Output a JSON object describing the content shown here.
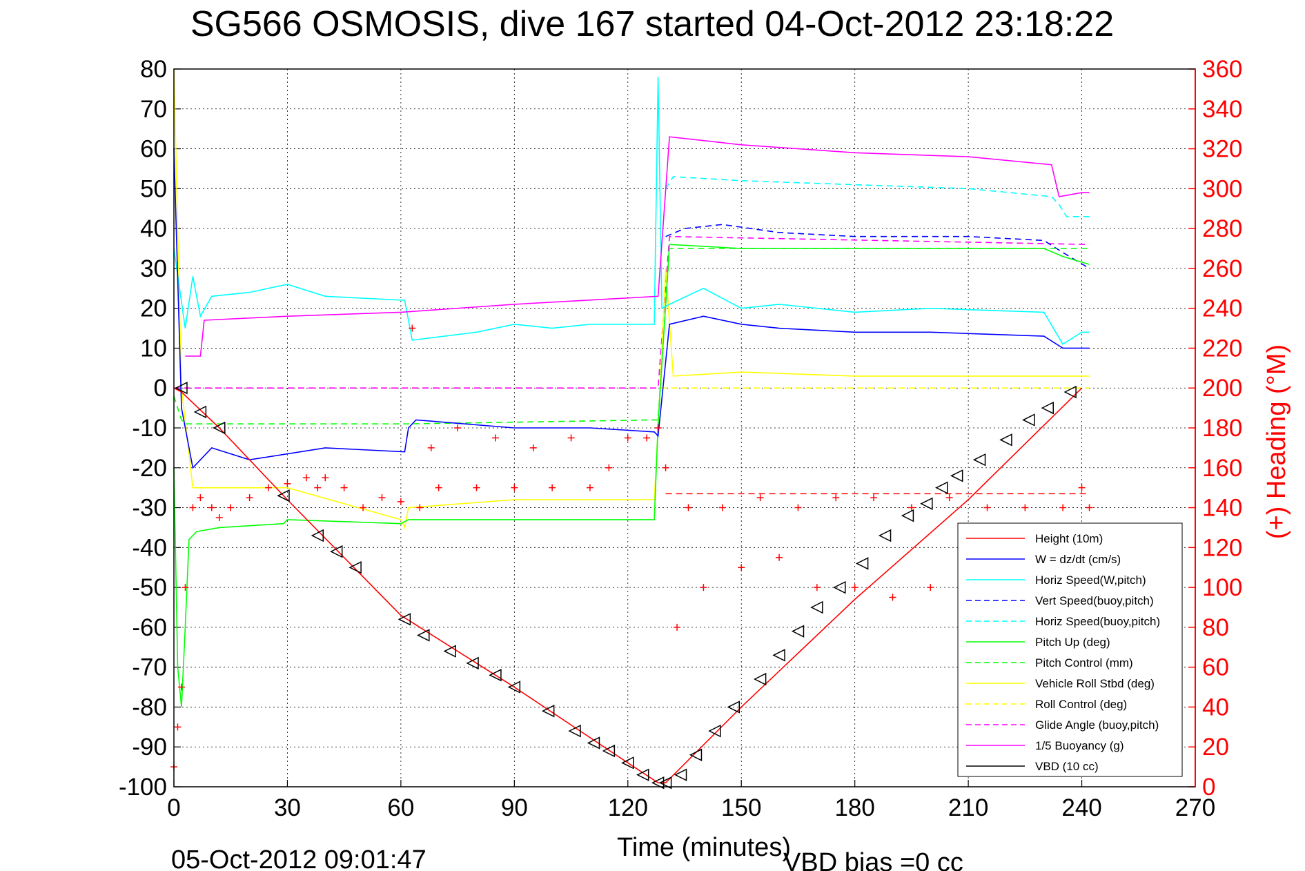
{
  "chart_data": {
    "type": "line",
    "title": "SG566 OSMOSIS, dive 167 started 04-Oct-2012 23:18:22",
    "xlabel": "Time (minutes)",
    "ylabel_right": "(+) Heading (°M)",
    "footer_date": "05-Oct-2012 09:01:47",
    "footer_bias": "VBD bias =0 cc",
    "xlim": [
      0,
      270
    ],
    "ylim": [
      -100,
      80
    ],
    "ylim_right": [
      0,
      360
    ],
    "x_ticks": [
      "0",
      "30",
      "60",
      "90",
      "120",
      "150",
      "180",
      "210",
      "240",
      "270"
    ],
    "y_ticks": [
      "80",
      "70",
      "60",
      "50",
      "40",
      "30",
      "20",
      "10",
      "0",
      "-10",
      "-20",
      "-30",
      "-40",
      "-50",
      "-60",
      "-70",
      "-80",
      "-90",
      "-100"
    ],
    "y_right_ticks": [
      "360",
      "340",
      "320",
      "300",
      "280",
      "260",
      "240",
      "220",
      "200",
      "180",
      "160",
      "140",
      "120",
      "100",
      "80",
      "60",
      "40",
      "20",
      "0"
    ],
    "grid": true,
    "legend_position": "lower-right",
    "series": [
      {
        "name": "Height (10m)",
        "color": "#ff0000",
        "style": "solid",
        "x": [
          0,
          2,
          12,
          30,
          60,
          90,
          120,
          128,
          130,
          150,
          180,
          210,
          240
        ],
        "values": [
          0,
          -1,
          -10,
          -28,
          -57,
          -75,
          -94,
          -99,
          -99,
          -80,
          -53,
          -28,
          0
        ]
      },
      {
        "name": "W = dz/dt (cm/s)",
        "color": "#0000ff",
        "style": "solid",
        "x": [
          0,
          2,
          5,
          10,
          20,
          40,
          61,
          62,
          64,
          90,
          110,
          127,
          128,
          131,
          140,
          150,
          160,
          180,
          200,
          230,
          235,
          240,
          242
        ],
        "values": [
          60,
          -5,
          -20,
          -15,
          -18,
          -15,
          -16,
          -10,
          -8,
          -10,
          -10,
          -11,
          -12,
          16,
          18,
          16,
          15,
          14,
          14,
          13,
          10,
          10,
          10
        ]
      },
      {
        "name": "Horiz Speed(W,pitch)",
        "color": "#00ffff",
        "style": "solid",
        "x": [
          0,
          3,
          5,
          7,
          10,
          20,
          30,
          40,
          61,
          63,
          80,
          90,
          100,
          110,
          127,
          128,
          129,
          131,
          140,
          150,
          160,
          180,
          200,
          230,
          235,
          240,
          242
        ],
        "values": [
          35,
          15,
          28,
          18,
          23,
          24,
          26,
          23,
          22,
          12,
          14,
          16,
          15,
          16,
          16,
          78,
          20,
          21,
          25,
          20,
          21,
          19,
          20,
          19,
          11,
          14,
          14
        ]
      },
      {
        "name": "Vert Speed(buoy,pitch)",
        "color": "#0000ff",
        "style": "dashed",
        "x": [
          130,
          135,
          145,
          160,
          180,
          210,
          230,
          235,
          242
        ],
        "values": [
          38,
          40,
          41,
          39,
          38,
          38,
          37,
          34,
          30
        ]
      },
      {
        "name": "Horiz Speed(buoy,pitch)",
        "color": "#00ffff",
        "style": "dashed",
        "x": [
          130,
          132,
          150,
          180,
          210,
          232,
          234,
          236,
          242
        ],
        "values": [
          50,
          53,
          52,
          51,
          50,
          48,
          46,
          43,
          43
        ]
      },
      {
        "name": "Pitch Up (deg)",
        "color": "#00ff00",
        "style": "solid",
        "x": [
          0,
          1,
          2,
          3,
          4,
          6,
          12,
          29,
          30,
          60,
          62,
          90,
          127,
          128,
          131,
          150,
          180,
          210,
          230,
          235,
          242
        ],
        "values": [
          -20,
          -70,
          -80,
          -60,
          -38,
          -36,
          -35,
          -34,
          -33,
          -34,
          -33,
          -33,
          -33,
          -9,
          36,
          35,
          35,
          35,
          35,
          33,
          31
        ]
      },
      {
        "name": "Pitch Control (mm)",
        "color": "#00ff00",
        "style": "dashed",
        "x": [
          0,
          2,
          3,
          60,
          62,
          127,
          128,
          131,
          242
        ],
        "values": [
          -2,
          -8,
          -9,
          -9,
          -9,
          -8,
          -8,
          35,
          35
        ]
      },
      {
        "name": "Vehicle Roll Stbd (deg)",
        "color": "#ffff00",
        "style": "solid",
        "x": [
          0,
          2,
          5,
          30,
          60,
          61,
          62,
          90,
          127,
          128,
          130,
          132,
          150,
          180,
          210,
          240,
          242
        ],
        "values": [
          80,
          0,
          -25,
          -25,
          -33,
          -35,
          -30,
          -28,
          -28,
          -10,
          30,
          3,
          4,
          3,
          3,
          3,
          3
        ]
      },
      {
        "name": "Roll Control (deg)",
        "color": "#ffff00",
        "style": "dashed",
        "x": [
          0,
          2,
          60,
          62,
          128,
          131,
          242
        ],
        "values": [
          0,
          0,
          0,
          0,
          0,
          0,
          0
        ]
      },
      {
        "name": "Glide Angle (buoy,pitch)",
        "color": "#ff00ff",
        "style": "dashed",
        "x": [
          0,
          128,
          131,
          242
        ],
        "values": [
          0,
          0,
          38,
          36
        ]
      },
      {
        "name": "1/5 Buoyancy (g)",
        "color": "#ff00ff",
        "style": "solid",
        "x": [
          3,
          7,
          8,
          30,
          60,
          90,
          128,
          131,
          150,
          180,
          210,
          232,
          234,
          240,
          242
        ],
        "values": [
          8,
          8,
          17,
          18,
          19,
          21,
          23,
          63,
          61,
          59,
          58,
          56,
          48,
          49,
          49
        ]
      },
      {
        "name": "VBD (10 cc)",
        "color": "#000000",
        "style": "solid",
        "x": [
          0,
          1,
          2,
          3,
          128,
          130,
          131,
          242
        ],
        "values": [
          60,
          20,
          0,
          -9,
          -9,
          5,
          10,
          10
        ]
      }
    ],
    "heading_points": {
      "name": "(+) Heading",
      "color": "#ff0000",
      "axis": "right",
      "x": [
        0,
        1,
        2,
        3,
        5,
        7,
        10,
        12,
        15,
        20,
        25,
        30,
        35,
        38,
        40,
        45,
        50,
        55,
        60,
        63,
        65,
        68,
        70,
        75,
        80,
        85,
        90,
        95,
        100,
        105,
        110,
        115,
        120,
        125,
        128,
        130,
        133,
        136,
        140,
        145,
        150,
        155,
        160,
        165,
        170,
        175,
        180,
        185,
        190,
        195,
        200,
        205,
        210,
        215,
        220,
        225,
        230,
        235,
        240,
        242
      ],
      "values": [
        10,
        30,
        50,
        100,
        140,
        145,
        140,
        135,
        140,
        145,
        150,
        152,
        155,
        150,
        155,
        150,
        140,
        145,
        143,
        230,
        140,
        170,
        150,
        180,
        150,
        175,
        150,
        170,
        150,
        175,
        150,
        160,
        175,
        175,
        180,
        160,
        80,
        140,
        100,
        140,
        110,
        145,
        115,
        140,
        100,
        145,
        100,
        145,
        95,
        140,
        100,
        145,
        105,
        140,
        110,
        140,
        120,
        140,
        150,
        140
      ]
    },
    "heading_reference": {
      "value": 147,
      "color": "#ff0000",
      "style": "dashed",
      "x_start": 130,
      "x_end": 242
    },
    "height_markers": {
      "symbol": "triangle",
      "x": [
        2,
        7,
        12,
        29,
        38,
        43,
        48,
        61,
        66,
        73,
        79,
        85,
        90,
        99,
        106,
        111,
        115,
        120,
        124,
        128,
        130,
        134,
        138,
        143,
        148,
        155,
        160,
        165,
        170,
        176,
        182,
        188,
        194,
        199,
        203,
        207,
        213,
        220,
        226,
        231,
        237
      ],
      "values": [
        0,
        -6,
        -10,
        -27,
        -37,
        -41,
        -45,
        -58,
        -62,
        -66,
        -69,
        -72,
        -75,
        -81,
        -86,
        -89,
        -91,
        -94,
        -97,
        -99,
        -99,
        -97,
        -92,
        -86,
        -80,
        -73,
        -67,
        -61,
        -55,
        -50,
        -44,
        -37,
        -32,
        -29,
        -25,
        -22,
        -18,
        -13,
        -8,
        -5,
        -1
      ]
    }
  }
}
